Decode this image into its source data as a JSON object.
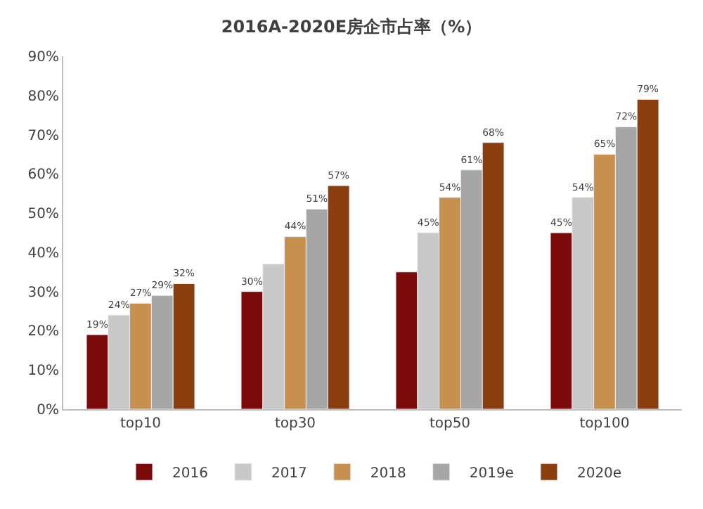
{
  "chart_data": {
    "type": "bar",
    "title": "2016A-2020E房企市占率（%）",
    "categories": [
      "top10",
      "top30",
      "top50",
      "top100"
    ],
    "series": [
      {
        "name": "2016",
        "color": "#7b0a0a",
        "values": [
          19,
          30,
          35,
          45
        ],
        "value_labels": [
          "19%",
          "30%",
          null,
          "45%"
        ]
      },
      {
        "name": "2017",
        "color": "#c8c8c8",
        "values": [
          24,
          37,
          45,
          54
        ],
        "value_labels": [
          "24%",
          null,
          "45%",
          "54%"
        ]
      },
      {
        "name": "2018",
        "color": "#c8904f",
        "values": [
          27,
          44,
          54,
          65
        ],
        "value_labels": [
          "27%",
          "44%",
          "54%",
          "65%"
        ]
      },
      {
        "name": "2019e",
        "color": "#a6a6a6",
        "values": [
          29,
          51,
          61,
          72
        ],
        "value_labels": [
          "29%",
          "51%",
          "61%",
          "72%"
        ]
      },
      {
        "name": "2020e",
        "color": "#8b3f0e",
        "values": [
          32,
          57,
          68,
          79
        ],
        "value_labels": [
          "32%",
          "57%",
          "68%",
          "79%"
        ]
      }
    ],
    "ylim": [
      0,
      90
    ],
    "yticks": [
      {
        "value": 0,
        "label": "0%"
      },
      {
        "value": 10,
        "label": "10%"
      },
      {
        "value": 20,
        "label": "20%"
      },
      {
        "value": 30,
        "label": "30%"
      },
      {
        "value": 40,
        "label": "40%"
      },
      {
        "value": 50,
        "label": "50%"
      },
      {
        "value": 60,
        "label": "60%"
      },
      {
        "value": 70,
        "label": "70%"
      },
      {
        "value": 80,
        "label": "80%"
      },
      {
        "value": 90,
        "label": "90%"
      }
    ],
    "legend": "bottom"
  }
}
